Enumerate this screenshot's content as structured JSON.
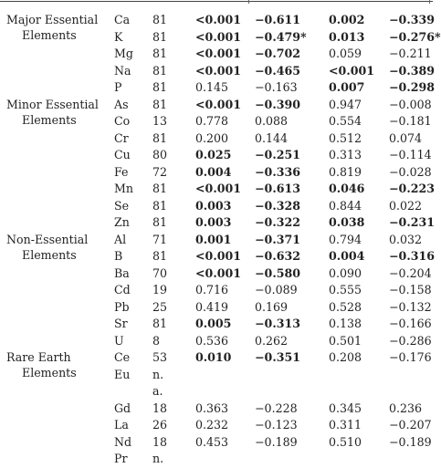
{
  "groups": [
    {
      "label_line1": "Major Essential",
      "label_line2": "Elements",
      "rows": [
        {
          "el": "Ca",
          "n": "81",
          "v1": "<0.001",
          "v2": "−0.611",
          "v3": "0.002",
          "v4": "−0.339",
          "bold": [
            true,
            true,
            true,
            true
          ]
        },
        {
          "el": "K",
          "n": "81",
          "v1": "<0.001",
          "v2": "−0.479*",
          "v3": "0.013",
          "v4": "−0.276*",
          "bold": [
            true,
            true,
            true,
            true
          ]
        },
        {
          "el": "Mg",
          "n": "81",
          "v1": "<0.001",
          "v2": "−0.702",
          "v3": "0.059",
          "v4": "−0.211",
          "bold": [
            true,
            true,
            false,
            false
          ]
        },
        {
          "el": "Na",
          "n": "81",
          "v1": "<0.001",
          "v2": "−0.465",
          "v3": "<0.001",
          "v4": "−0.389",
          "bold": [
            true,
            true,
            true,
            true
          ]
        },
        {
          "el": "P",
          "n": "81",
          "v1": "0.145",
          "v2": "−0.163",
          "v3": "0.007",
          "v4": "−0.298",
          "bold": [
            false,
            false,
            true,
            true
          ]
        }
      ]
    },
    {
      "label_line1": "Minor Essential",
      "label_line2": "Elements",
      "rows": [
        {
          "el": "As",
          "n": "81",
          "v1": "<0.001",
          "v2": "−0.390",
          "v3": "0.947",
          "v4": "−0.008",
          "bold": [
            true,
            true,
            false,
            false
          ]
        },
        {
          "el": "Co",
          "n": "13",
          "v1": "0.778",
          "v2": "0.088",
          "v3": "0.554",
          "v4": "−0.181",
          "bold": [
            false,
            false,
            false,
            false
          ]
        },
        {
          "el": "Cr",
          "n": "81",
          "v1": "0.200",
          "v2": "0.144",
          "v3": "0.512",
          "v4": "0.074",
          "bold": [
            false,
            false,
            false,
            false
          ]
        },
        {
          "el": "Cu",
          "n": "80",
          "v1": "0.025",
          "v2": "−0.251",
          "v3": "0.313",
          "v4": "−0.114",
          "bold": [
            true,
            true,
            false,
            false
          ]
        },
        {
          "el": "Fe",
          "n": "72",
          "v1": "0.004",
          "v2": "−0.336",
          "v3": "0.819",
          "v4": "−0.028",
          "bold": [
            true,
            true,
            false,
            false
          ]
        },
        {
          "el": "Mn",
          "n": "81",
          "v1": "<0.001",
          "v2": "−0.613",
          "v3": "0.046",
          "v4": "−0.223",
          "bold": [
            true,
            true,
            true,
            true
          ]
        },
        {
          "el": "Se",
          "n": "81",
          "v1": "0.003",
          "v2": "−0.328",
          "v3": "0.844",
          "v4": "0.022",
          "bold": [
            true,
            true,
            false,
            false
          ]
        },
        {
          "el": "Zn",
          "n": "81",
          "v1": "0.003",
          "v2": "−0.322",
          "v3": "0.038",
          "v4": "−0.231",
          "bold": [
            true,
            true,
            true,
            true
          ]
        }
      ]
    },
    {
      "label_line1": "Non-Essential",
      "label_line2": "Elements",
      "rows": [
        {
          "el": "Al",
          "n": "71",
          "v1": "0.001",
          "v2": "−0.371",
          "v3": "0.794",
          "v4": "0.032",
          "bold": [
            true,
            true,
            false,
            false
          ]
        },
        {
          "el": "B",
          "n": "81",
          "v1": "<0.001",
          "v2": "−0.632",
          "v3": "0.004",
          "v4": "−0.316",
          "bold": [
            true,
            true,
            true,
            true
          ]
        },
        {
          "el": "Ba",
          "n": "70",
          "v1": "<0.001",
          "v2": "−0.580",
          "v3": "0.090",
          "v4": "−0.204",
          "bold": [
            true,
            true,
            false,
            false
          ]
        },
        {
          "el": "Cd",
          "n": "19",
          "v1": "0.716",
          "v2": "−0.089",
          "v3": "0.555",
          "v4": "−0.158",
          "bold": [
            false,
            false,
            false,
            false
          ]
        },
        {
          "el": "Pb",
          "n": "25",
          "v1": "0.419",
          "v2": "0.169",
          "v3": "0.528",
          "v4": "−0.132",
          "bold": [
            false,
            false,
            false,
            false
          ]
        },
        {
          "el": "Sr",
          "n": "81",
          "v1": "0.005",
          "v2": "−0.313",
          "v3": "0.138",
          "v4": "−0.166",
          "bold": [
            true,
            true,
            false,
            false
          ]
        },
        {
          "el": "U",
          "n": "8",
          "v1": "0.536",
          "v2": "0.262",
          "v3": "0.501",
          "v4": "−0.286",
          "bold": [
            false,
            false,
            false,
            false
          ]
        }
      ]
    },
    {
      "label_line1": "Rare Earth",
      "label_line2": "Elements",
      "rows": [
        {
          "el": "Ce",
          "n": "53",
          "v1": "0.010",
          "v2": "−0.351",
          "v3": "0.208",
          "v4": "−0.176",
          "bold": [
            true,
            true,
            false,
            false
          ]
        },
        {
          "el": "Eu",
          "n": "n.",
          "n2": "a.",
          "v1": "",
          "v2": "",
          "v3": "",
          "v4": "",
          "bold": [
            false,
            false,
            false,
            false
          ]
        },
        {
          "el": "Gd",
          "n": "18",
          "v1": "0.363",
          "v2": "−0.228",
          "v3": "0.345",
          "v4": "0.236",
          "bold": [
            false,
            false,
            false,
            false
          ]
        },
        {
          "el": "La",
          "n": "26",
          "v1": "0.232",
          "v2": "−0.123",
          "v3": "0.311",
          "v4": "−0.207",
          "bold": [
            false,
            false,
            false,
            false
          ]
        },
        {
          "el": "Nd",
          "n": "18",
          "v1": "0.453",
          "v2": "−0.189",
          "v3": "0.510",
          "v4": "−0.189",
          "bold": [
            false,
            false,
            false,
            false
          ]
        },
        {
          "el": "Pr",
          "n": "n.",
          "v1": "",
          "v2": "",
          "v3": "",
          "v4": "",
          "bold": [
            false,
            false,
            false,
            false
          ]
        }
      ]
    }
  ]
}
